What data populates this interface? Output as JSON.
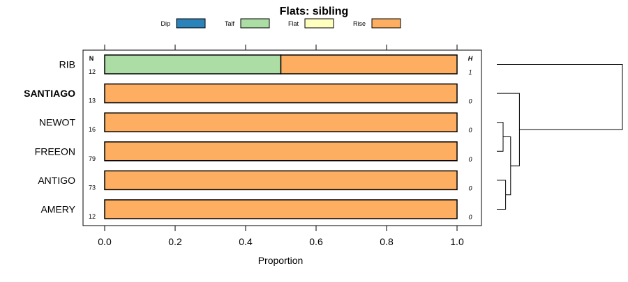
{
  "chart_data": {
    "type": "bar",
    "stacked": true,
    "orientation": "horizontal",
    "title": "Flats: sibling",
    "xlabel": "Proportion",
    "ylabel": "",
    "xlim": [
      0,
      1
    ],
    "x_ticks": [
      "0.0",
      "0.2",
      "0.4",
      "0.6",
      "0.8",
      "1.0"
    ],
    "x_tick_values": [
      0,
      0.2,
      0.4,
      0.6,
      0.8,
      1.0
    ],
    "n_header": "N",
    "h_header": "H",
    "legend": [
      {
        "name": "Dip",
        "color": "#2b83ba"
      },
      {
        "name": "Talf",
        "color": "#abdda4"
      },
      {
        "name": "Flat",
        "color": "#ffffbf"
      },
      {
        "name": "Rise",
        "color": "#fdae61"
      }
    ],
    "rows": [
      {
        "label": "RIB",
        "bold": false,
        "n": "12",
        "h": "1",
        "values": [
          0,
          0.5,
          0,
          0.5
        ]
      },
      {
        "label": "SANTIAGO",
        "bold": true,
        "n": "13",
        "h": "0",
        "values": [
          0,
          0,
          0,
          1
        ]
      },
      {
        "label": "NEWOT",
        "bold": false,
        "n": "16",
        "h": "0",
        "values": [
          0,
          0,
          0,
          1
        ]
      },
      {
        "label": "FREEON",
        "bold": false,
        "n": "79",
        "h": "0",
        "values": [
          0,
          0,
          0,
          1
        ]
      },
      {
        "label": "ANTIGO",
        "bold": false,
        "n": "73",
        "h": "0",
        "values": [
          0,
          0,
          0,
          1
        ]
      },
      {
        "label": "AMERY",
        "bold": false,
        "n": "12",
        "h": "0",
        "values": [
          0,
          0,
          0,
          1
        ]
      }
    ],
    "dendrogram": {
      "merges": [
        {
          "a": "AMERY",
          "b": "ANTIGO",
          "height": 0.07
        },
        {
          "a": "FREEON",
          "b": "NEWOT",
          "height": 0.05
        },
        {
          "a": "AMERY+ANTIGO",
          "b": "FREEON+NEWOT",
          "height": 0.11
        },
        {
          "a": "AMERY+ANTIGO+FREEON+NEWOT",
          "b": "SANTIAGO",
          "height": 0.18
        },
        {
          "a": "AMERY+ANTIGO+FREEON+NEWOT+SANTIAGO",
          "b": "RIB",
          "height": 1.0
        }
      ]
    }
  }
}
